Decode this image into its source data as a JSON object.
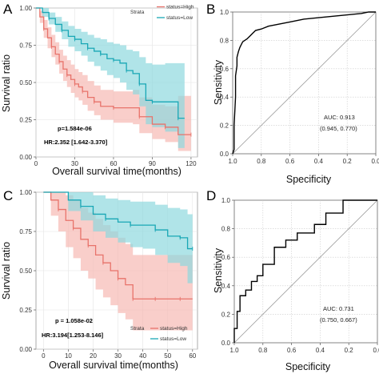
{
  "panels": [
    {
      "letter": "A"
    },
    {
      "letter": "B"
    },
    {
      "letter": "C"
    },
    {
      "letter": "D"
    }
  ],
  "chart_data": [
    {
      "type": "line",
      "panel": "A",
      "subtype": "kaplan-meier",
      "xlabel": "Overall survival time(months)",
      "ylabel": "Survival ratio",
      "xlim": [
        0,
        125
      ],
      "ylim": [
        0,
        1
      ],
      "xticks": [
        "0",
        "30",
        "60",
        "90",
        "120"
      ],
      "yticks": [
        "0.00",
        "0.25",
        "0.50",
        "0.75",
        "1.00"
      ],
      "legend_title": "Strata",
      "legend_position": "top-right",
      "pvalue": "p=1.584e-06",
      "hr": "HR:2.352 [1.642-3.370]",
      "series": [
        {
          "name": "status=High",
          "color": "#e8736b",
          "band_color": "#f6b9b4",
          "x": [
            0,
            3,
            6,
            9,
            12,
            15,
            18,
            21,
            24,
            27,
            30,
            33,
            36,
            40,
            45,
            50,
            60,
            75,
            80,
            90,
            100,
            110,
            120
          ],
          "y": [
            1.0,
            0.94,
            0.86,
            0.8,
            0.74,
            0.69,
            0.64,
            0.59,
            0.55,
            0.52,
            0.49,
            0.47,
            0.44,
            0.4,
            0.37,
            0.34,
            0.33,
            0.33,
            0.27,
            0.22,
            0.2,
            0.15,
            0.15
          ],
          "lower": [
            1.0,
            0.9,
            0.8,
            0.73,
            0.67,
            0.62,
            0.56,
            0.51,
            0.47,
            0.43,
            0.4,
            0.38,
            0.35,
            0.31,
            0.28,
            0.25,
            0.23,
            0.22,
            0.16,
            0.12,
            0.1,
            0.04,
            0.04
          ],
          "upper": [
            1.0,
            0.98,
            0.92,
            0.87,
            0.82,
            0.77,
            0.72,
            0.68,
            0.65,
            0.62,
            0.59,
            0.57,
            0.55,
            0.51,
            0.48,
            0.45,
            0.44,
            0.45,
            0.4,
            0.35,
            0.34,
            0.41,
            0.41
          ]
        },
        {
          "name": "status=Low",
          "color": "#19a7b5",
          "band_color": "#8fd9de",
          "x": [
            0,
            5,
            10,
            15,
            20,
            25,
            30,
            35,
            40,
            45,
            50,
            55,
            60,
            65,
            70,
            75,
            80,
            85,
            90,
            100,
            110,
            115
          ],
          "y": [
            1.0,
            0.97,
            0.93,
            0.89,
            0.85,
            0.81,
            0.79,
            0.76,
            0.73,
            0.71,
            0.69,
            0.66,
            0.65,
            0.63,
            0.58,
            0.56,
            0.49,
            0.38,
            0.37,
            0.37,
            0.26,
            0.26
          ],
          "lower": [
            1.0,
            0.94,
            0.89,
            0.84,
            0.79,
            0.74,
            0.71,
            0.68,
            0.64,
            0.61,
            0.58,
            0.55,
            0.53,
            0.5,
            0.45,
            0.42,
            0.34,
            0.22,
            0.2,
            0.17,
            0.06,
            0.06
          ],
          "upper": [
            1.0,
            1.0,
            0.97,
            0.94,
            0.91,
            0.88,
            0.86,
            0.84,
            0.82,
            0.8,
            0.79,
            0.77,
            0.76,
            0.75,
            0.72,
            0.71,
            0.67,
            0.63,
            0.62,
            0.63,
            0.63,
            0.63
          ]
        }
      ]
    },
    {
      "type": "line",
      "panel": "B",
      "subtype": "roc",
      "xlabel": "Specificity",
      "ylabel": "Sensitivity",
      "xlim": [
        1.0,
        0.0
      ],
      "ylim": [
        0,
        1
      ],
      "xticks": [
        "1.0",
        "0.8",
        "0.6",
        "0.4",
        "0.2",
        "0.0"
      ],
      "yticks": [
        "0.0",
        "0.2",
        "0.4",
        "0.6",
        "0.8",
        "1.0"
      ],
      "auc": "AUC: 0.913",
      "ci": "(0.945, 0.770)",
      "series": [
        {
          "color": "#000000",
          "specificity": [
            1.0,
            0.99,
            0.99,
            0.98,
            0.98,
            0.97,
            0.97,
            0.96,
            0.95,
            0.94,
            0.93,
            0.9,
            0.88,
            0.86,
            0.84,
            0.8,
            0.75,
            0.7,
            0.6,
            0.5,
            0.4,
            0.3,
            0.2,
            0.1,
            0.05,
            0.0
          ],
          "sensitivity": [
            0.0,
            0.03,
            0.2,
            0.4,
            0.55,
            0.62,
            0.68,
            0.72,
            0.75,
            0.77,
            0.79,
            0.81,
            0.83,
            0.85,
            0.87,
            0.88,
            0.9,
            0.91,
            0.93,
            0.95,
            0.96,
            0.97,
            0.98,
            0.99,
            1.0,
            1.0
          ]
        }
      ]
    },
    {
      "type": "line",
      "panel": "C",
      "subtype": "kaplan-meier",
      "xlabel": "Overall survival time(months)",
      "ylabel": "Survival ratio",
      "xlim": [
        -3,
        62
      ],
      "ylim": [
        0,
        1
      ],
      "xticks": [
        "0",
        "10",
        "20",
        "30",
        "40",
        "50",
        "60"
      ],
      "yticks": [
        "0.00",
        "0.25",
        "0.50",
        "0.75",
        "1.00"
      ],
      "legend_title": "Strata",
      "legend_position": "bottom-right",
      "pvalue": "p = 1.058e-02",
      "hr": "HR:3.194[1.253-8.146]",
      "series": [
        {
          "name": "status=High",
          "color": "#e8736b",
          "band_color": "#f6b9b4",
          "x": [
            0,
            3,
            6,
            9,
            12,
            15,
            18,
            21,
            24,
            27,
            30,
            33,
            36,
            40,
            45,
            50,
            55,
            60
          ],
          "y": [
            1.0,
            0.95,
            0.89,
            0.82,
            0.77,
            0.7,
            0.66,
            0.6,
            0.55,
            0.5,
            0.45,
            0.41,
            0.32,
            0.32,
            0.32,
            0.32,
            0.32,
            0.32
          ],
          "lower": [
            1.0,
            0.85,
            0.75,
            0.65,
            0.58,
            0.5,
            0.45,
            0.38,
            0.33,
            0.28,
            0.23,
            0.19,
            0.12,
            0.12,
            0.12,
            0.12,
            0.12,
            0.12
          ],
          "upper": [
            1.0,
            1.0,
            1.0,
            0.98,
            0.95,
            0.9,
            0.87,
            0.83,
            0.79,
            0.75,
            0.71,
            0.67,
            0.6,
            0.6,
            0.6,
            0.6,
            0.6,
            0.6
          ]
        },
        {
          "name": "status=Low",
          "color": "#19a7b5",
          "band_color": "#8fd9de",
          "x": [
            0,
            10,
            15,
            20,
            25,
            30,
            35,
            40,
            45,
            50,
            55,
            58,
            60
          ],
          "y": [
            1.0,
            0.95,
            0.91,
            0.86,
            0.83,
            0.81,
            0.79,
            0.79,
            0.76,
            0.72,
            0.71,
            0.64,
            0.64
          ],
          "lower": [
            1.0,
            0.88,
            0.82,
            0.75,
            0.71,
            0.68,
            0.65,
            0.64,
            0.6,
            0.55,
            0.53,
            0.42,
            0.42
          ],
          "upper": [
            1.0,
            1.0,
            1.0,
            0.98,
            0.96,
            0.95,
            0.94,
            0.94,
            0.92,
            0.9,
            0.89,
            0.86,
            0.86
          ]
        }
      ]
    },
    {
      "type": "line",
      "panel": "D",
      "subtype": "roc",
      "xlabel": "Specificity",
      "ylabel": "Sensitivity",
      "xlim": [
        1.0,
        0.0
      ],
      "ylim": [
        0,
        1
      ],
      "xticks": [
        "1.0",
        "0.8",
        "0.6",
        "0.4",
        "0.2",
        "0.0"
      ],
      "yticks": [
        "0.0",
        "0.2",
        "0.4",
        "0.6",
        "0.8",
        "1.0"
      ],
      "auc": "AUC: 0.731",
      "ci": "(0.750, 0.667)",
      "series": [
        {
          "color": "#000000",
          "specificity": [
            1.0,
            1.0,
            0.98,
            0.98,
            0.96,
            0.96,
            0.92,
            0.92,
            0.88,
            0.88,
            0.84,
            0.84,
            0.8,
            0.8,
            0.72,
            0.72,
            0.64,
            0.64,
            0.56,
            0.56,
            0.44,
            0.44,
            0.36,
            0.36,
            0.24,
            0.24,
            0.0
          ],
          "sensitivity": [
            0.0,
            0.1,
            0.1,
            0.22,
            0.22,
            0.33,
            0.33,
            0.37,
            0.37,
            0.43,
            0.43,
            0.47,
            0.47,
            0.55,
            0.55,
            0.67,
            0.67,
            0.72,
            0.72,
            0.77,
            0.77,
            0.83,
            0.83,
            0.91,
            0.91,
            1.0,
            1.0
          ]
        }
      ]
    }
  ]
}
